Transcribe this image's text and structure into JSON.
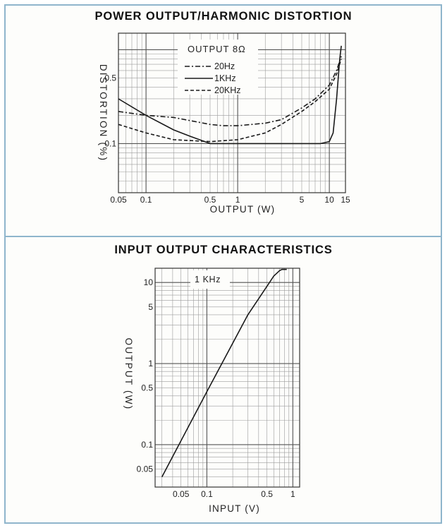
{
  "page": {
    "border_color": "#8fb5cc"
  },
  "chart_data": [
    {
      "type": "line",
      "title": "POWER OUTPUT/HARMONIC DISTORTION",
      "xlabel": "OUTPUT (W)",
      "ylabel": "DISTORTION (%)",
      "x_scale": "log",
      "y_scale": "log",
      "xlim": [
        0.05,
        15
      ],
      "ylim": [
        0.03,
        1.5
      ],
      "x_ticks": [
        {
          "value": 0.05,
          "label": "0.05"
        },
        {
          "value": 0.1,
          "label": "0.1"
        },
        {
          "value": 0.5,
          "label": "0.5"
        },
        {
          "value": 1,
          "label": "1"
        },
        {
          "value": 5,
          "label": "5"
        },
        {
          "value": 10,
          "label": "10"
        },
        {
          "value": 15,
          "label": "15"
        }
      ],
      "y_ticks": [
        {
          "value": 0.1,
          "label": "0.1"
        },
        {
          "value": 0.5,
          "label": "0.5"
        }
      ],
      "grid": true,
      "legend_position": "top-center",
      "legend_title": "OUTPUT 8Ω",
      "series": [
        {
          "name": "20Hz",
          "style": "dash-dot",
          "x": [
            0.05,
            0.1,
            0.2,
            0.5,
            0.7,
            1,
            2,
            3,
            5,
            7,
            10,
            12,
            13.5
          ],
          "y": [
            0.22,
            0.2,
            0.19,
            0.16,
            0.155,
            0.155,
            0.165,
            0.18,
            0.24,
            0.3,
            0.42,
            0.6,
            0.85
          ]
        },
        {
          "name": "1KHz",
          "style": "solid",
          "x": [
            0.05,
            0.1,
            0.2,
            0.3,
            0.5,
            1,
            2,
            5,
            8,
            10,
            11,
            12,
            13,
            13.5
          ],
          "y": [
            0.3,
            0.2,
            0.14,
            0.12,
            0.1,
            0.1,
            0.1,
            0.1,
            0.1,
            0.105,
            0.13,
            0.3,
            0.8,
            1.1
          ]
        },
        {
          "name": "20KHz",
          "style": "dashed",
          "x": [
            0.05,
            0.1,
            0.2,
            0.5,
            1,
            2,
            3,
            5,
            7,
            10,
            12,
            13.5
          ],
          "y": [
            0.16,
            0.13,
            0.11,
            0.105,
            0.11,
            0.13,
            0.16,
            0.22,
            0.28,
            0.38,
            0.55,
            0.8
          ]
        }
      ]
    },
    {
      "type": "line",
      "title": "INPUT OUTPUT CHARACTERISTICS",
      "xlabel": "INPUT (V)",
      "ylabel": "OUTPUT (W)",
      "x_scale": "log",
      "y_scale": "log",
      "xlim": [
        0.025,
        1.2
      ],
      "ylim": [
        0.03,
        15
      ],
      "x_ticks": [
        {
          "value": 0.05,
          "label": "0.05"
        },
        {
          "value": 0.1,
          "label": "0.1"
        },
        {
          "value": 0.5,
          "label": "0.5"
        },
        {
          "value": 1,
          "label": "1"
        }
      ],
      "y_ticks": [
        {
          "value": 0.05,
          "label": "0.05"
        },
        {
          "value": 0.1,
          "label": "0.1"
        },
        {
          "value": 0.5,
          "label": "0.5"
        },
        {
          "value": 1,
          "label": "1"
        },
        {
          "value": 5,
          "label": "5"
        },
        {
          "value": 10,
          "label": "10"
        }
      ],
      "grid": true,
      "annotation": "1 KHz",
      "series": [
        {
          "name": "1 KHz",
          "style": "solid",
          "x": [
            0.03,
            0.1,
            0.3,
            0.6,
            0.7,
            0.75,
            0.85
          ],
          "y": [
            0.04,
            0.45,
            4.0,
            12.0,
            14.0,
            14.5,
            14.5
          ]
        }
      ]
    }
  ]
}
